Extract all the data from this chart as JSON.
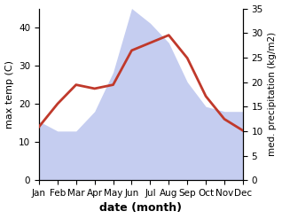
{
  "months": [
    "Jan",
    "Feb",
    "Mar",
    "Apr",
    "May",
    "Jun",
    "Jul",
    "Aug",
    "Sep",
    "Oct",
    "Nov",
    "Dec"
  ],
  "temp": [
    14,
    20,
    25,
    24,
    25,
    34,
    36,
    38,
    32,
    22,
    16,
    13
  ],
  "precip": [
    12,
    10,
    10,
    14,
    22,
    35,
    32,
    28,
    20,
    15,
    14,
    14
  ],
  "temp_color": "#c0392b",
  "precip_color": "#c5cdf0",
  "left_ylim": [
    0,
    45
  ],
  "right_ylim": [
    0,
    35
  ],
  "left_yticks": [
    0,
    10,
    20,
    30,
    40
  ],
  "right_yticks": [
    0,
    5,
    10,
    15,
    20,
    25,
    30,
    35
  ],
  "left_ylabel": "max temp (C)",
  "right_ylabel": "med. precipitation (kg/m2)",
  "xlabel": "date (month)",
  "figsize": [
    3.18,
    2.47
  ],
  "dpi": 100
}
